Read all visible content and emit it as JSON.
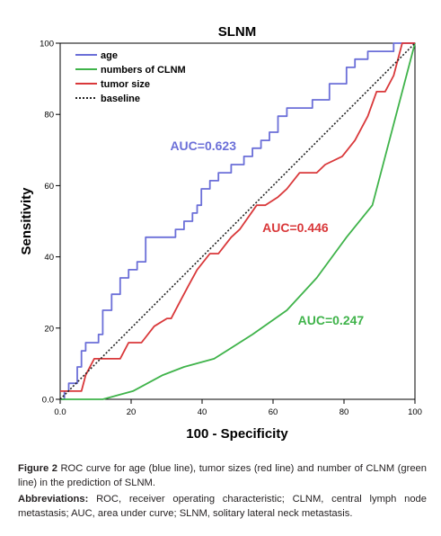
{
  "chart_data": {
    "type": "line",
    "title": "SLNM",
    "xlabel": "100 - Specificity",
    "ylabel": "Sensitivity",
    "xlim": [
      0,
      100
    ],
    "ylim": [
      0,
      100
    ],
    "x_ticks": [
      "0.0",
      "20",
      "40",
      "60",
      "80",
      "100"
    ],
    "y_ticks": [
      "0.0",
      "20",
      "40",
      "60",
      "80",
      "100"
    ],
    "grid": false,
    "legend_position": "top-left",
    "series": [
      {
        "name": "age",
        "color": "#6b6fd8",
        "dash": "solid",
        "x": [
          0,
          1.2,
          1.2,
          2.4,
          2.4,
          4.8,
          4.8,
          6.0,
          6.0,
          7.2,
          7.2,
          8.4,
          8.4,
          10.8,
          10.8,
          12.0,
          12.0,
          14.5,
          14.5,
          16.9,
          16.9,
          19.3,
          19.3,
          21.7,
          21.7,
          24.1,
          24.1,
          30.1,
          30.1,
          32.5,
          32.5,
          34.9,
          34.9,
          37.3,
          37.3,
          38.6,
          38.6,
          39.8,
          39.8,
          42.2,
          42.2,
          44.6,
          44.6,
          48.2,
          48.2,
          51.8,
          51.8,
          54.2,
          54.2,
          56.6,
          56.6,
          59.0,
          59.0,
          61.4,
          61.4,
          63.9,
          63.9,
          66.3,
          66.3,
          71.1,
          71.1,
          75.9,
          75.9,
          80.7,
          80.7,
          83.1,
          83.1,
          86.7,
          86.7,
          89.2,
          89.2,
          94.0,
          94.0,
          96.4,
          96.4,
          100
        ],
        "y": [
          0,
          0,
          2.3,
          2.3,
          4.5,
          4.5,
          9.1,
          9.1,
          13.6,
          13.6,
          15.9,
          15.9,
          15.9,
          15.9,
          18.2,
          18.2,
          25.0,
          25.0,
          29.5,
          29.5,
          34.1,
          34.1,
          36.4,
          36.4,
          38.6,
          38.6,
          45.5,
          45.5,
          45.5,
          45.5,
          47.7,
          47.7,
          50.0,
          50.0,
          52.3,
          52.3,
          54.5,
          54.5,
          59.1,
          59.1,
          61.4,
          61.4,
          63.6,
          63.6,
          65.9,
          65.9,
          68.2,
          68.2,
          70.5,
          70.5,
          72.7,
          72.7,
          75.0,
          75.0,
          79.5,
          79.5,
          81.8,
          81.8,
          81.8,
          81.8,
          84.1,
          84.1,
          88.6,
          88.6,
          93.2,
          93.2,
          95.5,
          95.5,
          97.7,
          97.7,
          97.7,
          97.7,
          100,
          100,
          100,
          100
        ]
      },
      {
        "name": "numbers of CLNM",
        "color": "#3fb34a",
        "dash": "solid",
        "x": [
          0,
          12.0,
          20.5,
          28.9,
          34.9,
          43.4,
          54.2,
          63.9,
          72.3,
          80.7,
          88.0,
          100
        ],
        "y": [
          0,
          0,
          2.3,
          6.8,
          9.1,
          11.4,
          18.2,
          25.0,
          34.1,
          45.5,
          54.5,
          100
        ]
      },
      {
        "name": "tumor size",
        "color": "#d9383a",
        "dash": "solid",
        "x": [
          0,
          2.4,
          6.0,
          7.2,
          9.6,
          16.9,
          19.3,
          22.9,
          26.5,
          30.1,
          31.3,
          33.7,
          36.1,
          38.6,
          42.2,
          44.6,
          48.2,
          50.6,
          55.4,
          57.8,
          61.4,
          63.9,
          67.5,
          72.3,
          74.7,
          79.5,
          83.1,
          86.7,
          89.2,
          91.6,
          94.0,
          96.4,
          100
        ],
        "y": [
          2.3,
          2.3,
          2.3,
          6.8,
          11.4,
          11.4,
          15.9,
          15.9,
          20.5,
          22.7,
          22.7,
          27.3,
          31.8,
          36.4,
          40.9,
          40.9,
          45.5,
          47.7,
          54.5,
          54.5,
          56.8,
          59.1,
          63.6,
          63.6,
          65.9,
          68.2,
          72.7,
          79.5,
          86.4,
          86.4,
          90.9,
          100,
          100
        ]
      },
      {
        "name": "baseline",
        "color": "#222222",
        "dash": "dotted",
        "x": [
          0,
          100
        ],
        "y": [
          0,
          100
        ]
      }
    ],
    "annotations": [
      {
        "text": "AUC=0.623",
        "color": "#6b6fd8",
        "x": 31,
        "y": 70
      },
      {
        "text": "AUC=0.446",
        "color": "#d9383a",
        "x": 57,
        "y": 47
      },
      {
        "text": "AUC=0.247",
        "color": "#3fb34a",
        "x": 67,
        "y": 21
      }
    ]
  },
  "caption": {
    "figure_label": "Figure 2",
    "figure_text": " ROC curve for age (blue line), tumor sizes (red line) and number of CLNM (green line) in the prediction of SLNM.",
    "abbrev_label": "Abbreviations:",
    "abbrev_text": " ROC, receiver operating characteristic; CLNM, central lymph node metastasis; AUC, area under curve; SLNM, solitary lateral neck metastasis."
  }
}
